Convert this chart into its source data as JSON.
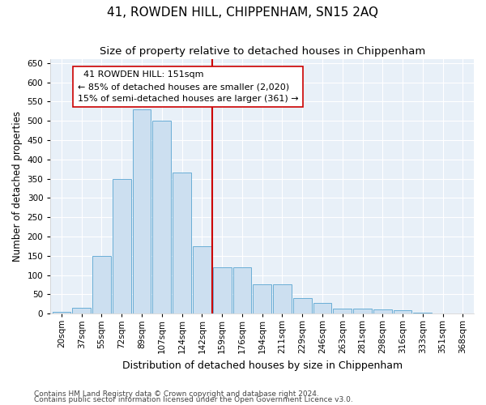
{
  "title": "41, ROWDEN HILL, CHIPPENHAM, SN15 2AQ",
  "subtitle": "Size of property relative to detached houses in Chippenham",
  "xlabel": "Distribution of detached houses by size in Chippenham",
  "ylabel": "Number of detached properties",
  "footnote1": "Contains HM Land Registry data © Crown copyright and database right 2024.",
  "footnote2": "Contains public sector information licensed under the Open Government Licence v3.0.",
  "bin_labels": [
    "20sqm",
    "37sqm",
    "55sqm",
    "72sqm",
    "89sqm",
    "107sqm",
    "124sqm",
    "142sqm",
    "159sqm",
    "176sqm",
    "194sqm",
    "211sqm",
    "229sqm",
    "246sqm",
    "263sqm",
    "281sqm",
    "298sqm",
    "316sqm",
    "333sqm",
    "351sqm",
    "368sqm"
  ],
  "bar_values": [
    5,
    15,
    150,
    350,
    530,
    500,
    365,
    175,
    120,
    120,
    75,
    75,
    40,
    28,
    13,
    13,
    10,
    8,
    2,
    0,
    0
  ],
  "bar_color": "#ccdff0",
  "bar_edge_color": "#6aaed6",
  "background_color": "#e8f0f8",
  "grid_color": "#ffffff",
  "vline_x": 7.5,
  "vline_color": "#cc0000",
  "annotation_line1": "  41 ROWDEN HILL: 151sqm",
  "annotation_line2": "← 85% of detached houses are smaller (2,020)",
  "annotation_line3": "15% of semi-detached houses are larger (361) →",
  "ylim": [
    0,
    660
  ],
  "yticks": [
    0,
    50,
    100,
    150,
    200,
    250,
    300,
    350,
    400,
    450,
    500,
    550,
    600,
    650
  ],
  "title_fontsize": 11,
  "subtitle_fontsize": 9.5,
  "xlabel_fontsize": 9,
  "ylabel_fontsize": 8.5,
  "tick_fontsize": 7.5,
  "annotation_fontsize": 8
}
